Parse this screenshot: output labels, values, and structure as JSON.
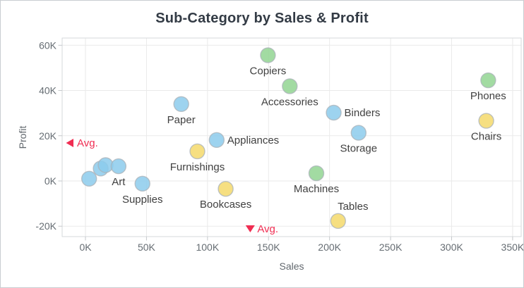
{
  "chart_data": {
    "type": "scatter",
    "title": "Sub-Category by Sales & Profit",
    "xlabel": "Sales",
    "ylabel": "Profit",
    "grid": true,
    "legend": "none",
    "xlim": [
      -19100,
      357000
    ],
    "ylim": [
      -24600,
      63200
    ],
    "x_ticks": [
      {
        "value": 0,
        "label": "0K"
      },
      {
        "value": 50000,
        "label": "50K"
      },
      {
        "value": 100000,
        "label": "100K"
      },
      {
        "value": 150000,
        "label": "150K"
      },
      {
        "value": 200000,
        "label": "200K"
      },
      {
        "value": 250000,
        "label": "250K"
      },
      {
        "value": 300000,
        "label": "300K"
      },
      {
        "value": 350000,
        "label": "350K"
      }
    ],
    "y_ticks": [
      {
        "value": 60000,
        "label": "60K"
      },
      {
        "value": 40000,
        "label": "40K"
      },
      {
        "value": 20000,
        "label": "20K"
      },
      {
        "value": 0,
        "label": "0K"
      },
      {
        "value": -20000,
        "label": "-20K"
      }
    ],
    "colors": {
      "blue": "#8CCBEC",
      "green": "#92D592",
      "yellow": "#F5D96B"
    },
    "bubble_stroke": "#AAB2B8",
    "avg_color": "#F02D52",
    "avg_sales": {
      "value": 135000,
      "label": "Avg."
    },
    "avg_profit": {
      "value": 16800,
      "label": "Avg."
    },
    "points": [
      {
        "label": "",
        "sales": 3000,
        "profit": 1000,
        "color": "blue",
        "label_pos": "none"
      },
      {
        "label": "",
        "sales": 12500,
        "profit": 5500,
        "color": "blue",
        "label_pos": "none"
      },
      {
        "label": "",
        "sales": 16500,
        "profit": 7000,
        "color": "blue",
        "label_pos": "none"
      },
      {
        "label": "Art",
        "sales": 27100,
        "profit": 6500,
        "color": "blue",
        "label_pos": "below"
      },
      {
        "label": "Supplies",
        "sales": 46700,
        "profit": -1200,
        "color": "blue",
        "label_pos": "below"
      },
      {
        "label": "Paper",
        "sales": 78500,
        "profit": 34000,
        "color": "blue",
        "label_pos": "below"
      },
      {
        "label": "Furnishings",
        "sales": 91700,
        "profit": 13100,
        "color": "yellow",
        "label_pos": "below"
      },
      {
        "label": "Appliances",
        "sales": 107500,
        "profit": 18100,
        "color": "blue",
        "label_pos": "right"
      },
      {
        "label": "Bookcases",
        "sales": 114900,
        "profit": -3500,
        "color": "yellow",
        "label_pos": "below"
      },
      {
        "label": "Copiers",
        "sales": 149500,
        "profit": 55600,
        "color": "green",
        "label_pos": "below"
      },
      {
        "label": "Accessories",
        "sales": 167400,
        "profit": 41900,
        "color": "green",
        "label_pos": "below"
      },
      {
        "label": "Machines",
        "sales": 189200,
        "profit": 3400,
        "color": "green",
        "label_pos": "below"
      },
      {
        "label": "Binders",
        "sales": 203400,
        "profit": 30200,
        "color": "blue",
        "label_pos": "right"
      },
      {
        "label": "Tables",
        "sales": 207000,
        "profit": -17700,
        "color": "yellow",
        "label_pos": "above-right"
      },
      {
        "label": "Storage",
        "sales": 223800,
        "profit": 21300,
        "color": "blue",
        "label_pos": "below"
      },
      {
        "label": "Chairs",
        "sales": 328400,
        "profit": 26600,
        "color": "yellow",
        "label_pos": "below"
      },
      {
        "label": "Phones",
        "sales": 330000,
        "profit": 44500,
        "color": "green",
        "label_pos": "below"
      }
    ]
  }
}
